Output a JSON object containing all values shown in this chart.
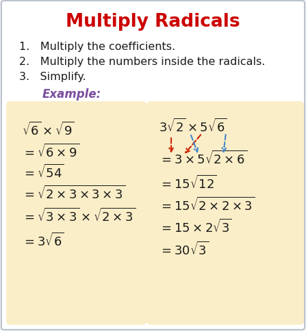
{
  "title": "Multiply Radicals",
  "title_color": "#cc0000",
  "title_fontsize": 19,
  "bg_color": "#f5f5f5",
  "box_color": "#faeec8",
  "border_color": "#c8c8c8",
  "steps": [
    "1.   Multiply the coefficients.",
    "2.   Multiply the numbers inside the radicals.",
    "3.   Simplify."
  ],
  "example_label": "Example:",
  "example_color": "#7B4EA0",
  "left_lines": [
    "$\\sqrt{6}\\times\\sqrt{9}$",
    "$=\\sqrt{6\\times9}$",
    "$=\\sqrt{54}$",
    "$=\\sqrt{2\\times3\\times3\\times3}$",
    "$=\\sqrt{3\\times3}\\times\\sqrt{2\\times3}$",
    "$=3\\sqrt{6}$"
  ],
  "right_lines": [
    "$3\\sqrt{2}\\times5\\sqrt{6}$",
    "$=3\\times5\\sqrt{2\\times6}$",
    "$=15\\sqrt{12}$",
    "$=15\\sqrt{2\\times2\\times3}$",
    "$=15\\times2\\sqrt{3}$",
    "$=30\\sqrt{3}$"
  ],
  "text_color": "#1a1a1a",
  "step_fontsize": 11.5,
  "math_fontsize": 13,
  "fig_bg": "#f0f0f0"
}
